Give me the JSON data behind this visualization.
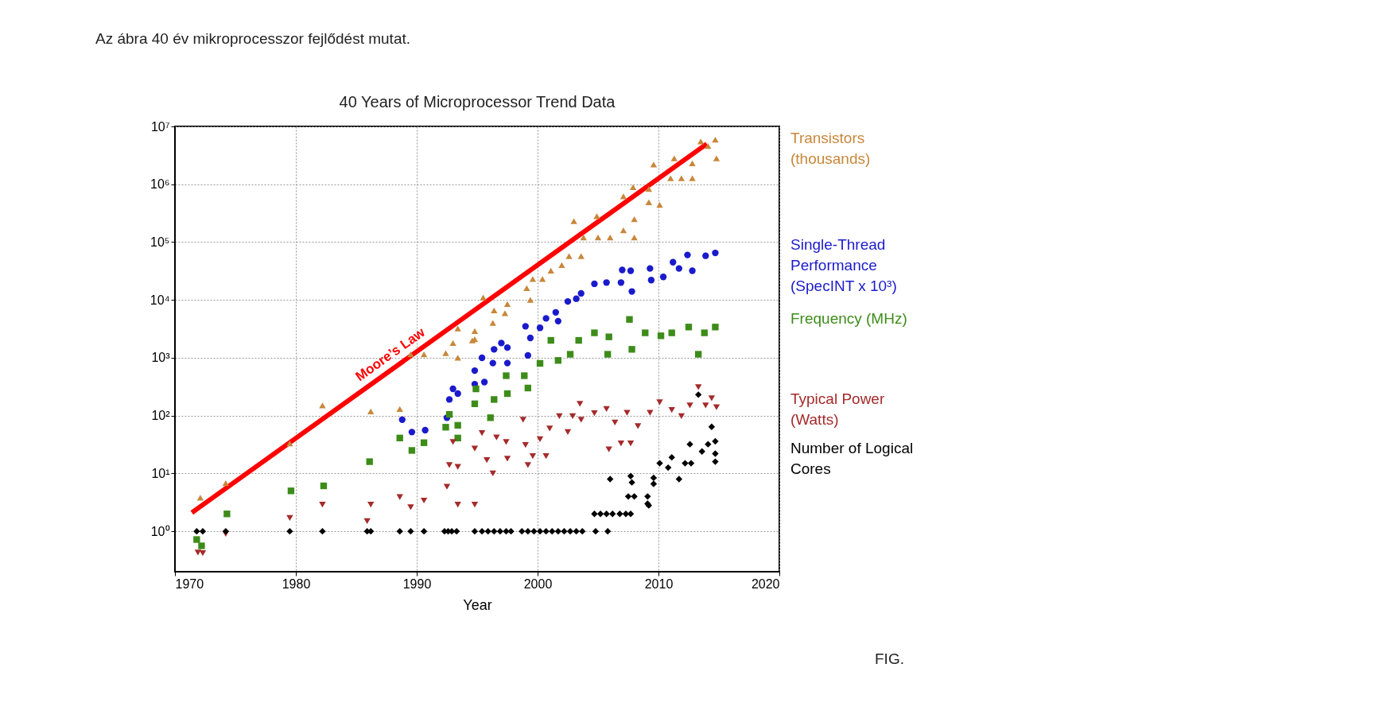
{
  "chart_data": {
    "type": "scatter",
    "title": "40 Years of Microprocessor Trend Data",
    "xlabel": "Year",
    "xlim": [
      1970,
      2020
    ],
    "xticks": [
      1970,
      1980,
      1990,
      2000,
      2010,
      2020
    ],
    "ylim": [
      0.2,
      10000000
    ],
    "log": true,
    "yticks": [
      {
        "value": 1,
        "label": "10⁰"
      },
      {
        "value": 10,
        "label": "10¹"
      },
      {
        "value": 100,
        "label": "10²"
      },
      {
        "value": 1000,
        "label": "10³"
      },
      {
        "value": 10000,
        "label": "10⁴"
      },
      {
        "value": 100000,
        "label": "10⁵"
      },
      {
        "value": 1000000,
        "label": "10⁶"
      },
      {
        "value": 10000000,
        "label": "10⁷"
      }
    ],
    "grid": true,
    "legend": "right",
    "annotations": [
      "Az ábra 40 év mikroprocesszor fejlődést mutat.",
      "FIG."
    ],
    "series": [
      {
        "name": "Transistors (thousands)",
        "color": "#c8873a",
        "marker": "triangle",
        "x": [
          1972.1,
          1974.2,
          1979.5,
          1982.2,
          1986.2,
          1988.6,
          1989.5,
          1990.6,
          1992.4,
          1993.0,
          1993.4,
          1993.4,
          1994.8,
          1994.8,
          1994.6,
          1995.5,
          1996.3,
          1996.4,
          1997.3,
          1997.5,
          1999.1,
          1999.4,
          1999.6,
          2000.4,
          2001.1,
          2002.0,
          2002.6,
          2003.6,
          2003.0,
          2003.8,
          2004.9,
          2005.0,
          2006.0,
          2007.1,
          2007.1,
          2007.9,
          2008.0,
          2008.0,
          2009.2,
          2009.2,
          2010.1,
          2009.6,
          2011.3,
          2011.0,
          2011.9,
          2012.8,
          2012.8,
          2013.5,
          2014.7,
          2014.8,
          2014.1
        ],
        "values": [
          3.8,
          6.8,
          33,
          150,
          118,
          130,
          1150,
          1150,
          1200,
          1800,
          1000,
          3200,
          2900,
          2100,
          2000,
          11000,
          4000,
          6600,
          5900,
          8500,
          16000,
          10000,
          23000,
          23000,
          32000,
          40000,
          57000,
          57000,
          230000,
          120000,
          280000,
          120000,
          120000,
          620000,
          160000,
          890000,
          250000,
          120000,
          830000,
          490000,
          440000,
          2200000,
          2800000,
          1270000,
          1270000,
          1270000,
          2300000,
          5500000,
          5900000,
          2800000,
          4600000
        ]
      },
      {
        "name": "Single-Thread Performance (SpecINT x 10³)",
        "color": "#1a1acc",
        "marker": "circle",
        "x": [
          1988.8,
          1989.6,
          1990.7,
          1992.5,
          1992.7,
          1993.0,
          1993.4,
          1994.8,
          1994.8,
          1995.4,
          1995.6,
          1996.3,
          1996.4,
          1997.0,
          1997.5,
          1997.5,
          1999.0,
          1999.2,
          1999.4,
          2000.2,
          2000.7,
          2001.5,
          2001.7,
          2002.5,
          2003.2,
          2003.6,
          2004.7,
          2005.7,
          2007.0,
          2006.9,
          2007.7,
          2007.8,
          2009.3,
          2009.4,
          2010.4,
          2011.2,
          2011.7,
          2012.4,
          2012.8,
          2013.9,
          2014.7
        ],
        "values": [
          85,
          52,
          56,
          92,
          190,
          290,
          240,
          600,
          350,
          1000,
          380,
          810,
          1400,
          1800,
          1500,
          810,
          3500,
          1100,
          2200,
          3300,
          4800,
          6100,
          4300,
          9400,
          10500,
          13000,
          19000,
          20000,
          33000,
          20000,
          32000,
          14000,
          35000,
          22000,
          25000,
          45000,
          35000,
          60000,
          32000,
          58000,
          65000
        ]
      },
      {
        "name": "Frequency (MHz)",
        "color": "#3d8c1a",
        "marker": "square",
        "x": [
          1971.8,
          1972.2,
          1974.3,
          1979.6,
          1982.3,
          1986.1,
          1988.6,
          1989.6,
          1990.6,
          1992.4,
          1992.7,
          1993.4,
          1993.4,
          1994.8,
          1994.9,
          1996.1,
          1996.4,
          1997.4,
          1997.5,
          1998.9,
          1999.2,
          2000.2,
          2001.1,
          2001.7,
          2002.7,
          2003.4,
          2004.7,
          2005.8,
          2005.9,
          2007.6,
          2007.8,
          2008.9,
          2010.2,
          2011.1,
          2012.5,
          2013.3,
          2013.8,
          2014.7
        ],
        "values": [
          0.72,
          0.56,
          2,
          5,
          6.1,
          16,
          41,
          25,
          34,
          63,
          105,
          68,
          41,
          160,
          290,
          92,
          190,
          490,
          240,
          490,
          300,
          800,
          2000,
          900,
          1150,
          2000,
          2700,
          1150,
          2300,
          4600,
          1400,
          2700,
          2400,
          2700,
          3400,
          1150,
          2700,
          3400
        ]
      },
      {
        "name": "Typical Power (Watts)",
        "color": "#a52a2a",
        "marker": "triangle-down",
        "x": [
          1971.9,
          1972.3,
          1974.2,
          1979.5,
          1982.2,
          1985.9,
          1986.2,
          1988.6,
          1989.5,
          1990.6,
          1992.5,
          1992.7,
          1993.4,
          1993.0,
          1993.4,
          1994.8,
          1994.8,
          1995.4,
          1995.8,
          1996.3,
          1996.6,
          1997.4,
          1997.5,
          1998.8,
          1999.0,
          1999.2,
          1999.6,
          2000.2,
          2000.7,
          2001.0,
          2001.8,
          2002.5,
          2002.9,
          2003.5,
          2003.6,
          2004.7,
          2005.7,
          2005.9,
          2006.4,
          2006.9,
          2007.7,
          2007.4,
          2008.3,
          2009.3,
          2010.1,
          2011.1,
          2011.9,
          2012.6,
          2013.3,
          2013.9,
          2014.4,
          2014.8
        ],
        "values": [
          0.43,
          0.42,
          0.9,
          1.7,
          2.9,
          1.5,
          2.9,
          3.9,
          2.6,
          3.4,
          5.9,
          14,
          13,
          35,
          2.9,
          2.9,
          27,
          50,
          17,
          10,
          42,
          35,
          18,
          85,
          31,
          14,
          20,
          39,
          20,
          60,
          98,
          52,
          98,
          160,
          85,
          110,
          130,
          26,
          76,
          33,
          33,
          112,
          66,
          112,
          170,
          125,
          98,
          150,
          310,
          150,
          200,
          140
        ]
      },
      {
        "name": "Number of Logical Cores",
        "color": "#000000",
        "marker": "diamond",
        "x": [
          1971.8,
          1972.3,
          1974.2,
          1979.5,
          1982.2,
          1985.9,
          1986.2,
          1988.6,
          1989.5,
          1990.6,
          1992.3,
          1992.6,
          1992.9,
          1993.3,
          1994.8,
          1995.4,
          1995.9,
          1996.4,
          1996.9,
          1997.4,
          1997.8,
          1998.7,
          1999.2,
          1999.7,
          2000.2,
          2000.7,
          2001.2,
          2001.7,
          2002.2,
          2002.7,
          2003.2,
          2003.7,
          2004.8,
          2005.8,
          2004.7,
          2005.2,
          2005.7,
          2006.2,
          2006.8,
          2007.3,
          2007.7,
          2006.0,
          2007.7,
          2007.8,
          2007.5,
          2008.0,
          2009.1,
          2009.1,
          2009.2,
          2009.6,
          2009.6,
          2010.1,
          2011.1,
          2010.8,
          2011.7,
          2012.2,
          2012.7,
          2012.6,
          2013.6,
          2014.1,
          2014.4,
          2014.7,
          2014.7,
          2014.7,
          2013.3
        ],
        "values": [
          1,
          1,
          1,
          1,
          1,
          1,
          1,
          1,
          1,
          1,
          1,
          1,
          1,
          1,
          1,
          1,
          1,
          1,
          1,
          1,
          1,
          1,
          1,
          1,
          1,
          1,
          1,
          1,
          1,
          1,
          1,
          1,
          1,
          1,
          2,
          2,
          2,
          2,
          2,
          2,
          2,
          8,
          9,
          7,
          4,
          4,
          4,
          3,
          2.8,
          8.4,
          6.6,
          15,
          19,
          12.6,
          8,
          15,
          15,
          32,
          24,
          32,
          64,
          36,
          22,
          16,
          230
        ]
      },
      {
        "name": "Moore’s Law",
        "type": "line",
        "color": "#ff0000",
        "marker": "none",
        "x": [
          1971.4,
          2014.0
        ],
        "values": [
          2.1,
          5000000
        ]
      }
    ]
  }
}
